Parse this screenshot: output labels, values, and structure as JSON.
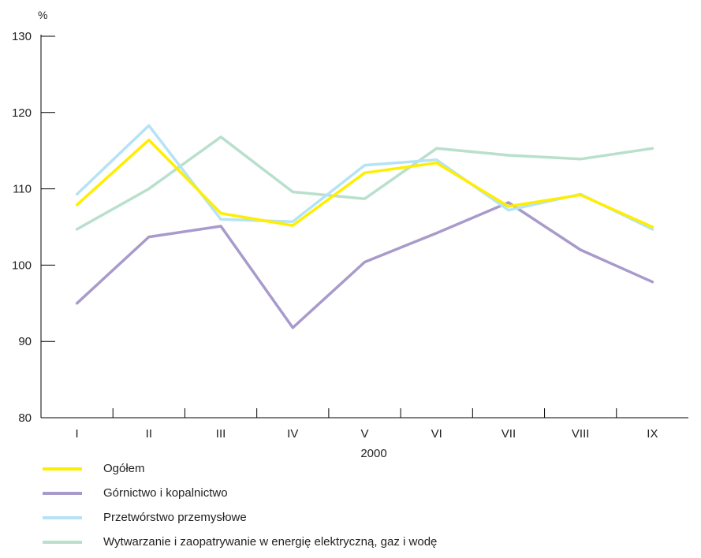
{
  "chart_data": {
    "type": "line",
    "title": "",
    "ylabel": "%",
    "xlabel": "2000",
    "ylim": [
      80,
      130
    ],
    "yticks": [
      80,
      90,
      100,
      110,
      120,
      130
    ],
    "categories": [
      "I",
      "II",
      "III",
      "IV",
      "V",
      "VI",
      "VII",
      "VIII",
      "IX"
    ],
    "grid": false,
    "legend_position": "bottom-left",
    "series": [
      {
        "name": "Wytwarzanie i zaopatrywanie w energię elektryczną, gaz i wodę",
        "color": "#b8e0cc",
        "values": [
          104.7,
          110.0,
          116.8,
          109.6,
          108.7,
          115.3,
          114.4,
          113.9,
          115.3
        ]
      },
      {
        "name": "Górnictwo i kopalnictwo",
        "color": "#a89bcb",
        "values": [
          95.0,
          103.7,
          105.1,
          91.8,
          100.4,
          104.2,
          108.2,
          102.0,
          97.8
        ]
      },
      {
        "name": "Przetwórstwo przemysłowe",
        "color": "#b5e3f5",
        "values": [
          109.3,
          118.3,
          106.0,
          105.7,
          113.1,
          113.8,
          107.2,
          109.3,
          104.7
        ]
      },
      {
        "name": "Ogółem",
        "color": "#ffee00",
        "values": [
          107.9,
          116.4,
          106.8,
          105.2,
          112.1,
          113.4,
          107.7,
          109.2,
          105.0
        ]
      }
    ],
    "legend": [
      {
        "name": "Ogółem",
        "color": "#ffee00"
      },
      {
        "name": "Górnictwo i kopalnictwo",
        "color": "#a89bcb"
      },
      {
        "name": "Przetwórstwo przemysłowe",
        "color": "#b5e3f5"
      },
      {
        "name": "Wytwarzanie i zaopatrywanie w energię elektryczną, gaz i wodę",
        "color": "#b8e0cc"
      }
    ]
  }
}
